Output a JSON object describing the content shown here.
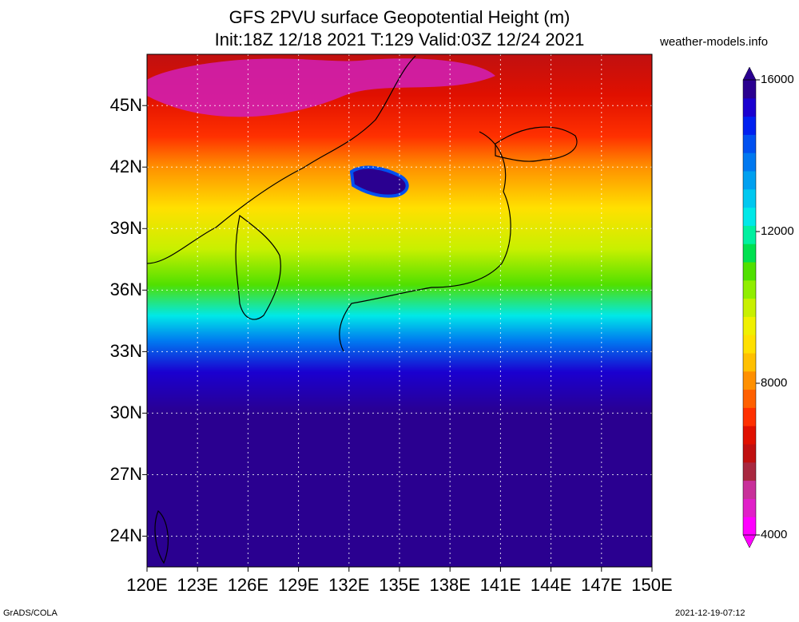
{
  "title": {
    "line1": "GFS 2PVU surface Geopotential Height (m)",
    "line2": "Init:18Z 12/18 2021 T:129 Valid:03Z 12/24 2021"
  },
  "site": "weather-models.info",
  "map": {
    "lon_range": [
      120,
      150
    ],
    "lat_range": [
      22.5,
      47.5
    ],
    "lat_labels": [
      "45N",
      "42N",
      "39N",
      "36N",
      "33N",
      "30N",
      "27N",
      "24N"
    ],
    "lat_values": [
      45,
      42,
      39,
      36,
      33,
      30,
      27,
      24
    ],
    "lon_labels": [
      "120E",
      "123E",
      "126E",
      "129E",
      "132E",
      "135E",
      "138E",
      "141E",
      "144E",
      "147E",
      "150E"
    ],
    "lon_values": [
      120,
      123,
      126,
      129,
      132,
      135,
      138,
      141,
      144,
      147,
      150
    ],
    "gridlines": true
  },
  "colorbar": {
    "min": 4000,
    "max": 16000,
    "labels": [
      "16000",
      "12000",
      "8000",
      "4000"
    ],
    "colors": [
      "#ff00ff",
      "#e020c8",
      "#c8309a",
      "#a82840",
      "#c01010",
      "#e01000",
      "#ff3000",
      "#ff6000",
      "#ff9000",
      "#ffc000",
      "#ffe000",
      "#f0f000",
      "#c8f000",
      "#90ee00",
      "#50e000",
      "#00e050",
      "#00f0a0",
      "#00e8e8",
      "#00c8f0",
      "#00a0f0",
      "#0078f0",
      "#0050f0",
      "#0020f0",
      "#1a00d0",
      "#2a0090"
    ]
  },
  "footer": {
    "left": "GrADS/COLA",
    "right": "2021-12-19-07:12"
  }
}
